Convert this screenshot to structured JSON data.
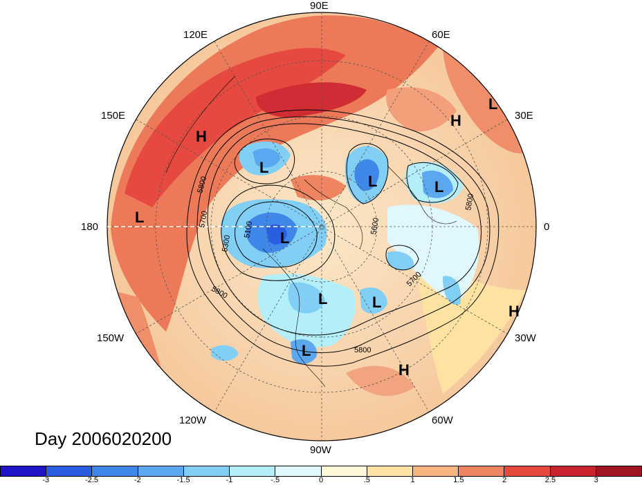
{
  "map": {
    "day_label": "Day 2006020200",
    "longitude_labels": [
      "90E",
      "60E",
      "30E",
      "0",
      "30W",
      "60W",
      "90W",
      "120W",
      "150W",
      "180",
      "150E",
      "120E"
    ],
    "pressure_systems": [
      {
        "label": "H"
      },
      {
        "label": "L"
      },
      {
        "label": "L"
      },
      {
        "label": "L"
      },
      {
        "label": "L"
      },
      {
        "label": "L"
      },
      {
        "label": "L"
      },
      {
        "label": "L"
      },
      {
        "label": "L"
      },
      {
        "label": "L"
      },
      {
        "label": "H"
      },
      {
        "label": "H"
      },
      {
        "label": "H"
      }
    ],
    "contour_labels": [
      "5800",
      "5700",
      "5300",
      "5100",
      "5800",
      "5700",
      "5800",
      "5800",
      "5600"
    ],
    "colors": {
      "land_outline": "#000000",
      "contour": "#000000",
      "warm": "#ea6f4f",
      "cold": "#4f82e8"
    }
  },
  "colorbar": {
    "tick_labels": [
      "-3",
      "-2.5",
      "-2",
      "-1.5",
      "-1",
      "-.5",
      "0",
      ".5",
      "1",
      "1.5",
      "2",
      "2.5",
      "3"
    ],
    "colors": [
      "#1f14c8",
      "#2a5ee0",
      "#3f88ea",
      "#5ba8f0",
      "#82cff5",
      "#b4eef9",
      "#e0f7fb",
      "#fff8d6",
      "#fde2a2",
      "#f7b47c",
      "#ee8460",
      "#e54a3c",
      "#c9242c",
      "#a11522"
    ]
  }
}
